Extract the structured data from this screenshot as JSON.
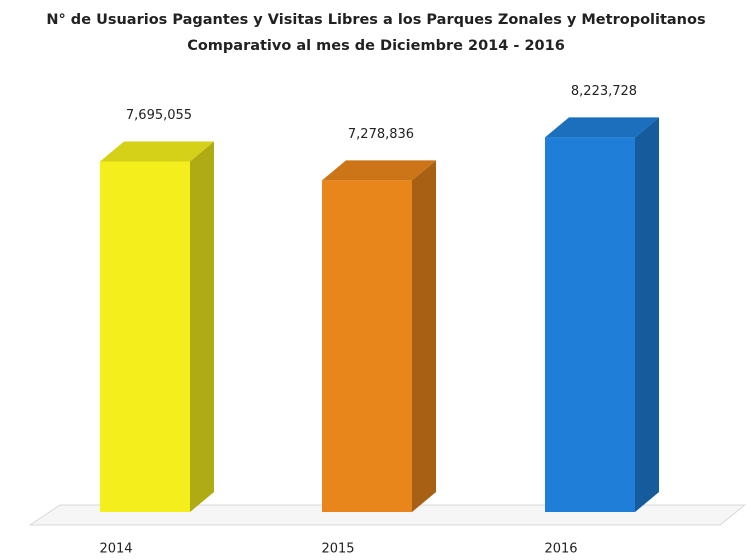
{
  "chart_data": {
    "type": "bar3d",
    "title": "N° de Usuarios Pagantes y Visitas Libres a los Parques Zonales y Metropolitanos",
    "subtitle": "Comparativo al mes de Diciembre 2014 - 2016",
    "categories": [
      "2014",
      "2015",
      "2016"
    ],
    "values": [
      7695055,
      7278836,
      8223728
    ],
    "value_labels": [
      "7,695,055",
      "7,278,836",
      "8,223,728"
    ],
    "colors": [
      "#f3ee1c",
      "#e8861c",
      "#1f7fd8"
    ],
    "ylim": [
      0,
      9000000
    ]
  }
}
